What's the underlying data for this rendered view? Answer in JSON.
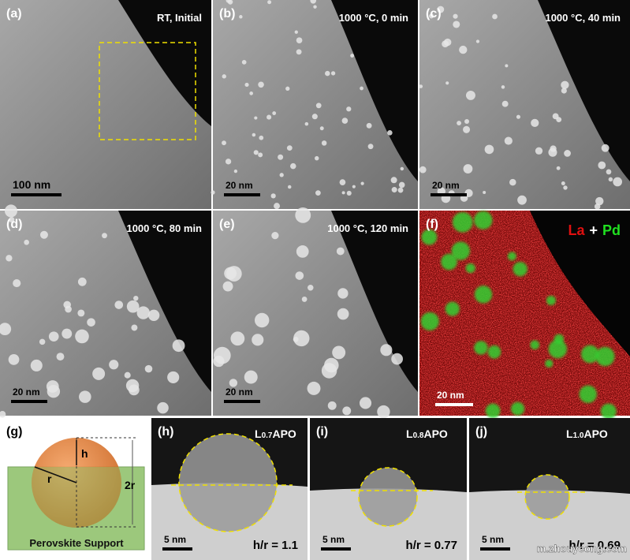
{
  "panels": [
    {
      "label": "(a)",
      "caption": "RT, Initial",
      "scale_bar": "100 nm"
    },
    {
      "label": "(b)",
      "caption": "1000 °C, 0 min",
      "scale_bar": "20 nm"
    },
    {
      "label": "(c)",
      "caption": "1000 °C, 40 min",
      "scale_bar": "20 nm"
    },
    {
      "label": "(d)",
      "caption": "1000 °C, 80 min",
      "scale_bar": "20 nm"
    },
    {
      "label": "(e)",
      "caption": "1000 °C, 120 min",
      "scale_bar": "20 nm"
    }
  ],
  "map": {
    "label": "(f)",
    "element_1": "La",
    "plus": "+",
    "element_2": "Pd",
    "scale_bar": "20 nm"
  },
  "schematic": {
    "label": "(g)",
    "height": "h",
    "radius": "r",
    "diameter": "2r",
    "support": "Perovskite Support"
  },
  "hrtem": [
    {
      "label": "(h)",
      "title": "L",
      "title_sub": "0.7",
      "title_rest": "APO",
      "scale_bar": "5 nm",
      "ratio": "h/r = 1.1"
    },
    {
      "label": "(i)",
      "title": "L",
      "title_sub": "0.8",
      "title_rest": "APO",
      "scale_bar": "5 nm",
      "ratio": "h/r = 0.77"
    },
    {
      "label": "(j)",
      "title": "L",
      "title_sub": "1.0",
      "title_rest": "APO",
      "scale_bar": "5 nm",
      "ratio": "h/r = 0.69"
    }
  ],
  "watermark": "m.zhouycong.com"
}
